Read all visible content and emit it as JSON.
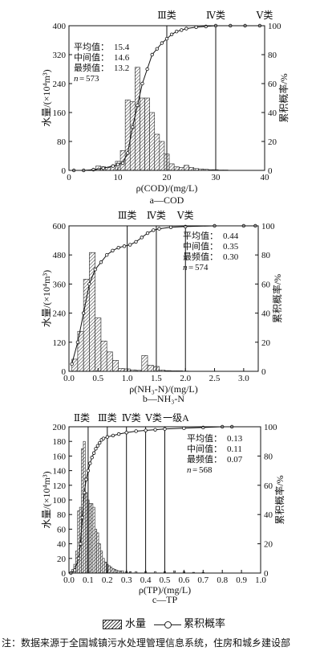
{
  "chart_data": [
    {
      "type": "bar",
      "panel": "a",
      "caption": "a—COD",
      "xlabel": "ρ(COD)/(mg/L)",
      "ylabel_left": "水量/(×10⁴m³)",
      "ylabel_right": "累积概率/%",
      "xlim": [
        0,
        40
      ],
      "ylim_left": [
        0,
        400
      ],
      "ylim_right": [
        0,
        100
      ],
      "x_ticks": [
        0,
        10,
        20,
        30,
        40
      ],
      "y_left_ticks": [
        0,
        80,
        160,
        240,
        320,
        400
      ],
      "y_right_ticks": [
        0,
        20,
        40,
        60,
        80,
        100
      ],
      "bar_width": 1,
      "bars": [
        [
          5,
          2
        ],
        [
          6,
          12
        ],
        [
          7,
          10
        ],
        [
          8,
          8
        ],
        [
          9,
          12
        ],
        [
          10,
          25
        ],
        [
          11,
          55
        ],
        [
          12,
          195
        ],
        [
          13,
          190
        ],
        [
          14,
          285
        ],
        [
          15,
          200
        ],
        [
          16,
          200
        ],
        [
          17,
          160
        ],
        [
          18,
          100
        ],
        [
          19,
          80
        ],
        [
          20,
          45
        ],
        [
          21,
          18
        ],
        [
          22,
          10
        ],
        [
          23,
          8
        ],
        [
          24,
          14
        ],
        [
          25,
          8
        ],
        [
          26,
          5
        ],
        [
          27,
          4
        ],
        [
          28,
          3
        ],
        [
          29,
          2
        ],
        [
          30,
          2
        ],
        [
          31,
          1
        ],
        [
          32,
          1
        ]
      ],
      "cumulative": [
        [
          1,
          0
        ],
        [
          3,
          0
        ],
        [
          5,
          0.5
        ],
        [
          7,
          1.5
        ],
        [
          9,
          3
        ],
        [
          10,
          4
        ],
        [
          11,
          5
        ],
        [
          12,
          12
        ],
        [
          13,
          30
        ],
        [
          14,
          45
        ],
        [
          15,
          60
        ],
        [
          16,
          70
        ],
        [
          17,
          80
        ],
        [
          18,
          84
        ],
        [
          19,
          88
        ],
        [
          20,
          91
        ],
        [
          21,
          94
        ],
        [
          22,
          96
        ],
        [
          23,
          97
        ],
        [
          24,
          98
        ],
        [
          26,
          99
        ],
        [
          28,
          99.5
        ],
        [
          30,
          100
        ],
        [
          33,
          100
        ],
        [
          36,
          100
        ],
        [
          39,
          100
        ]
      ],
      "class_lines": [
        {
          "x": 20,
          "label": "Ⅲ类"
        },
        {
          "x": 30,
          "label": "Ⅳ类"
        },
        {
          "x": 40,
          "label": "Ⅴ类"
        }
      ],
      "stats": [
        {
          "label": "平均值：",
          "value": "15.4"
        },
        {
          "label": "中间值：",
          "value": "14.6"
        },
        {
          "label": "最频值：",
          "value": "13.2"
        }
      ],
      "n": "573"
    },
    {
      "type": "bar",
      "panel": "b",
      "caption": "b—NH₃-N",
      "xlabel": "ρ(NH₃-N)/(mg/L)",
      "ylabel_left": "水量/(×10⁴m³)",
      "ylabel_right": "累积概率/%",
      "xlim": [
        0,
        3.25
      ],
      "ylim_left": [
        0,
        600
      ],
      "ylim_right": [
        0,
        100
      ],
      "x_ticks": [
        0.0,
        0.5,
        1.0,
        1.5,
        2.0,
        2.5,
        3.0
      ],
      "y_left_ticks": [
        0,
        120,
        240,
        360,
        480,
        600
      ],
      "y_right_ticks": [
        0,
        20,
        40,
        60,
        80,
        100
      ],
      "bar_width": 0.1,
      "bars": [
        [
          0.1,
          50
        ],
        [
          0.2,
          165
        ],
        [
          0.3,
          380
        ],
        [
          0.4,
          490
        ],
        [
          0.5,
          220
        ],
        [
          0.6,
          125
        ],
        [
          0.7,
          80
        ],
        [
          0.8,
          45
        ],
        [
          0.9,
          12
        ],
        [
          1.0,
          10
        ],
        [
          1.1,
          6
        ],
        [
          1.2,
          4
        ],
        [
          1.3,
          65
        ],
        [
          1.4,
          25
        ],
        [
          1.5,
          20
        ],
        [
          1.6,
          5
        ],
        [
          1.7,
          3
        ],
        [
          1.8,
          2
        ],
        [
          1.9,
          2
        ],
        [
          2.0,
          1
        ]
      ],
      "cumulative": [
        [
          0.05,
          5
        ],
        [
          0.15,
          20
        ],
        [
          0.25,
          40
        ],
        [
          0.35,
          60
        ],
        [
          0.45,
          70
        ],
        [
          0.55,
          75
        ],
        [
          0.65,
          80
        ],
        [
          0.75,
          83
        ],
        [
          0.85,
          85
        ],
        [
          0.95,
          86
        ],
        [
          1.05,
          87
        ],
        [
          1.15,
          89
        ],
        [
          1.25,
          92
        ],
        [
          1.35,
          95
        ],
        [
          1.45,
          97
        ],
        [
          1.55,
          98
        ],
        [
          1.75,
          99
        ],
        [
          2.0,
          99.5
        ],
        [
          2.5,
          100
        ],
        [
          3.0,
          100
        ],
        [
          3.2,
          100
        ]
      ],
      "class_lines": [
        {
          "x": 1.0,
          "label": "Ⅲ类"
        },
        {
          "x": 1.5,
          "label": "Ⅳ类"
        },
        {
          "x": 2.0,
          "label": "Ⅴ类"
        }
      ],
      "stats": [
        {
          "label": "平均值：",
          "value": "0.44"
        },
        {
          "label": "中间值：",
          "value": "0.35"
        },
        {
          "label": "最频值：",
          "value": "0.30"
        }
      ],
      "n": "574"
    },
    {
      "type": "bar",
      "panel": "c",
      "caption": "c—TP",
      "xlabel": "ρ(TP)/(mg/L)",
      "ylabel_left": "水量/(×10⁴m³)",
      "ylabel_right": "累积概率/%",
      "xlim": [
        0,
        1.0
      ],
      "ylim_left": [
        0,
        200
      ],
      "ylim_right": [
        0,
        100
      ],
      "x_ticks": [
        0.0,
        0.1,
        0.2,
        0.3,
        0.4,
        0.5,
        0.6,
        0.7,
        0.8,
        0.9,
        1.0
      ],
      "y_left_ticks": [
        0,
        20,
        40,
        60,
        80,
        100,
        120,
        140,
        160,
        180,
        200
      ],
      "y_right_ticks": [
        0,
        20,
        40,
        60,
        80,
        100
      ],
      "bar_width": 0.01,
      "bars": [
        [
          0.02,
          5
        ],
        [
          0.03,
          12
        ],
        [
          0.04,
          30
        ],
        [
          0.05,
          85
        ],
        [
          0.06,
          90
        ],
        [
          0.07,
          170
        ],
        [
          0.08,
          180
        ],
        [
          0.09,
          110
        ],
        [
          0.1,
          100
        ],
        [
          0.11,
          95
        ],
        [
          0.12,
          95
        ],
        [
          0.13,
          90
        ],
        [
          0.14,
          60
        ],
        [
          0.15,
          55
        ],
        [
          0.16,
          40
        ],
        [
          0.17,
          30
        ],
        [
          0.18,
          20
        ],
        [
          0.19,
          15
        ],
        [
          0.2,
          12
        ],
        [
          0.21,
          10
        ],
        [
          0.22,
          8
        ],
        [
          0.23,
          6
        ],
        [
          0.24,
          5
        ],
        [
          0.25,
          4
        ],
        [
          0.26,
          3
        ],
        [
          0.27,
          3
        ],
        [
          0.28,
          3
        ],
        [
          0.3,
          2
        ],
        [
          0.32,
          2
        ],
        [
          0.35,
          2
        ],
        [
          0.4,
          2
        ],
        [
          0.45,
          2
        ],
        [
          0.5,
          2
        ],
        [
          0.55,
          3
        ],
        [
          0.6,
          2
        ],
        [
          0.65,
          1
        ],
        [
          0.7,
          1
        ]
      ],
      "cumulative": [
        [
          0.01,
          0
        ],
        [
          0.03,
          2
        ],
        [
          0.05,
          10
        ],
        [
          0.06,
          20
        ],
        [
          0.07,
          38
        ],
        [
          0.08,
          55
        ],
        [
          0.09,
          64
        ],
        [
          0.1,
          70
        ],
        [
          0.11,
          75
        ],
        [
          0.12,
          79
        ],
        [
          0.13,
          82
        ],
        [
          0.14,
          85
        ],
        [
          0.15,
          87
        ],
        [
          0.16,
          89
        ],
        [
          0.17,
          91
        ],
        [
          0.18,
          92
        ],
        [
          0.2,
          93
        ],
        [
          0.23,
          94
        ],
        [
          0.26,
          95
        ],
        [
          0.3,
          96
        ],
        [
          0.35,
          97
        ],
        [
          0.4,
          97.5
        ],
        [
          0.45,
          98
        ],
        [
          0.5,
          98.5
        ],
        [
          0.6,
          99
        ],
        [
          0.7,
          99.5
        ],
        [
          0.8,
          100
        ],
        [
          0.85,
          100
        ]
      ],
      "class_lines": [
        {
          "x": 0.1,
          "label": "Ⅱ类"
        },
        {
          "x": 0.2,
          "label": "Ⅲ类"
        },
        {
          "x": 0.3,
          "label": "Ⅳ类"
        },
        {
          "x": 0.4,
          "label": "Ⅴ类"
        },
        {
          "x": 0.5,
          "label": "一级A"
        }
      ],
      "stats": [
        {
          "label": "平均值：",
          "value": "0.13"
        },
        {
          "label": "中间值：",
          "value": "0.11"
        },
        {
          "label": "最频值：",
          "value": "0.07"
        }
      ],
      "n": "568"
    }
  ],
  "legend": {
    "bar_label": "水量",
    "line_label": "累积概率"
  },
  "note": "注：数据来源于全国城镇污水处理管理信息系统，住房和城乡建设部"
}
